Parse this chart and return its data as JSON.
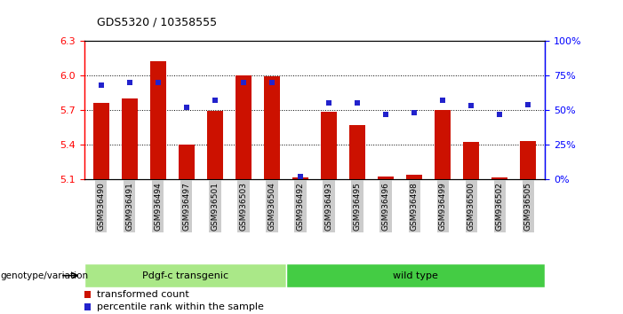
{
  "title": "GDS5320 / 10358555",
  "samples": [
    "GSM936490",
    "GSM936491",
    "GSM936494",
    "GSM936497",
    "GSM936501",
    "GSM936503",
    "GSM936504",
    "GSM936492",
    "GSM936493",
    "GSM936495",
    "GSM936496",
    "GSM936498",
    "GSM936499",
    "GSM936500",
    "GSM936502",
    "GSM936505"
  ],
  "transformed_counts": [
    5.76,
    5.8,
    6.12,
    5.4,
    5.69,
    6.0,
    5.99,
    5.11,
    5.68,
    5.57,
    5.12,
    5.14,
    5.7,
    5.42,
    5.11,
    5.43
  ],
  "percentile_ranks": [
    68,
    70,
    70,
    52,
    57,
    70,
    70,
    2,
    55,
    55,
    47,
    48,
    57,
    53,
    47,
    54
  ],
  "y_min": 5.1,
  "y_max": 6.3,
  "y_ticks": [
    5.1,
    5.4,
    5.7,
    6.0,
    6.3
  ],
  "right_y_ticks": [
    0,
    25,
    50,
    75,
    100
  ],
  "bar_color": "#cc1100",
  "dot_color": "#2222cc",
  "group1_label": "Pdgf-c transgenic",
  "group2_label": "wild type",
  "group1_color": "#aae888",
  "group2_color": "#44cc44",
  "group1_count": 7,
  "group2_count": 9,
  "legend_bar": "transformed count",
  "legend_dot": "percentile rank within the sample",
  "genotype_label": "genotype/variation"
}
